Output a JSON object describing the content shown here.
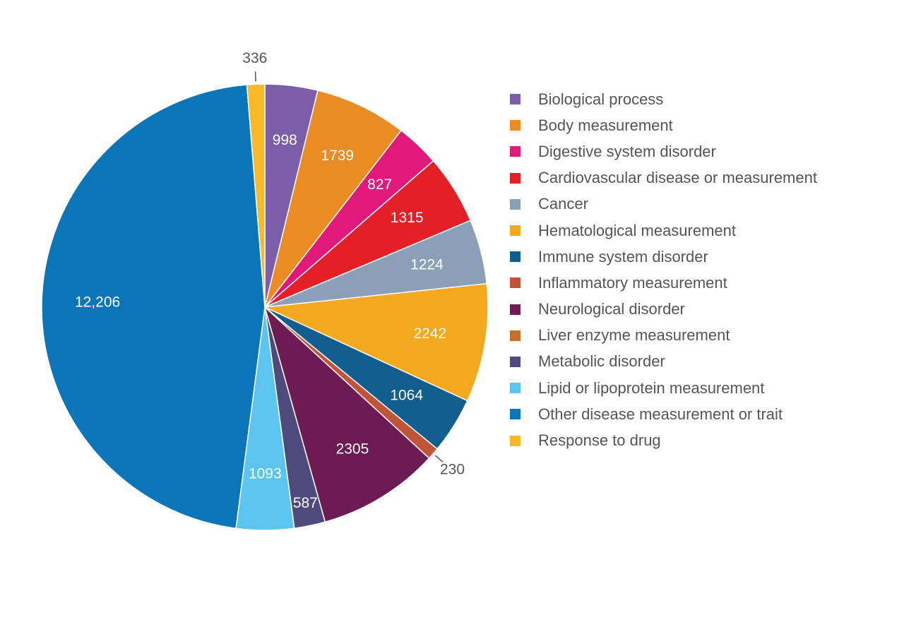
{
  "chart_data": {
    "type": "pie",
    "title": "",
    "legend_position": "right",
    "slices": [
      {
        "label": "Biological process",
        "value": 998,
        "display": "998",
        "color": "#7b5ea7"
      },
      {
        "label": "Body measurement",
        "value": 1739,
        "display": "1739",
        "color": "#ec8b22"
      },
      {
        "label": "Digestive system disorder",
        "value": 827,
        "display": "827",
        "color": "#e0197a"
      },
      {
        "label": "Cardiovascular disease or measurement",
        "value": 1315,
        "display": "1315",
        "color": "#e41f26"
      },
      {
        "label": "Cancer",
        "value": 1224,
        "display": "1224",
        "color": "#8aa0b8"
      },
      {
        "label": "Hematological measurement",
        "value": 2242,
        "display": "2242",
        "color": "#f2a81f"
      },
      {
        "label": "Immune system disorder",
        "value": 1064,
        "display": "1064",
        "color": "#125e8e"
      },
      {
        "label": "Inflammatory measurement",
        "value": 230,
        "display": "230",
        "color": "#c05436"
      },
      {
        "label": "Neurological disorder",
        "value": 2305,
        "display": "2305",
        "color": "#6f1b53"
      },
      {
        "label": "Liver enzyme measurement",
        "value": null,
        "display": "",
        "color": "#c4702a"
      },
      {
        "label": "Metabolic disorder",
        "value": 587,
        "display": "587",
        "color": "#4e4a7e"
      },
      {
        "label": "Lipid or lipoprotein measurement",
        "value": 1093,
        "display": "1093",
        "color": "#5bc5f0"
      },
      {
        "label": "Other disease measurement or trait",
        "value": 12206,
        "display": "12,206",
        "color": "#0a76b9"
      },
      {
        "label": "Response to drug",
        "value": 336,
        "display": "336",
        "color": "#fbb827"
      }
    ]
  }
}
